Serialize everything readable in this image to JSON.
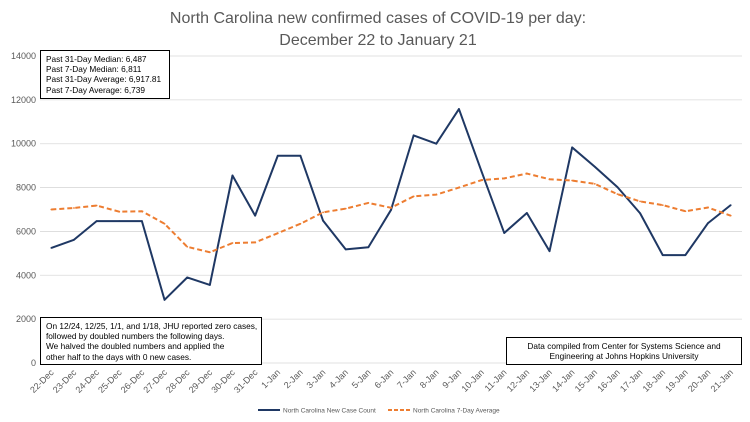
{
  "chart_data": {
    "type": "line",
    "title": [
      "North Carolina new confirmed cases of COVID-19 per day:",
      "December 22 to January 21"
    ],
    "categories": [
      "22-Dec",
      "23-Dec",
      "24-Dec",
      "25-Dec",
      "26-Dec",
      "27-Dec",
      "28-Dec",
      "29-Dec",
      "30-Dec",
      "31-Dec",
      "1-Jan",
      "2-Jan",
      "3-Jan",
      "4-Jan",
      "5-Jan",
      "6-Jan",
      "7-Jan",
      "8-Jan",
      "9-Jan",
      "10-Jan",
      "11-Jan",
      "12-Jan",
      "13-Jan",
      "14-Jan",
      "15-Jan",
      "16-Jan",
      "17-Jan",
      "18-Jan",
      "19-Jan",
      "20-Jan",
      "21-Jan"
    ],
    "ylim": [
      0,
      14000
    ],
    "yticks": [
      0,
      2000,
      4000,
      6000,
      8000,
      10000,
      12000,
      14000
    ],
    "series": [
      {
        "name": "North Carolina New Case Count",
        "color": "#1f3864",
        "style": "solid",
        "values": [
          5250,
          5620,
          6470,
          6470,
          6470,
          2880,
          3900,
          3560,
          8550,
          6720,
          9450,
          9450,
          6490,
          5180,
          5280,
          6980,
          10380,
          10000,
          11580,
          8730,
          5930,
          6840,
          5100,
          9830,
          8950,
          8020,
          6830,
          4920,
          4920,
          6380,
          7200
        ]
      },
      {
        "name": "North Carolina 7-Day Average",
        "color": "#ed7d31",
        "style": "dashed",
        "values": [
          7000,
          7070,
          7180,
          6900,
          6920,
          6350,
          5300,
          5050,
          5470,
          5500,
          5920,
          6350,
          6870,
          7040,
          7300,
          7080,
          7600,
          7680,
          8000,
          8340,
          8420,
          8640,
          8380,
          8320,
          8170,
          7700,
          7370,
          7200,
          6920,
          7090,
          6720
        ]
      }
    ],
    "grid": true,
    "legend": "bottom"
  },
  "boxes": {
    "stats": [
      "Past 31-Day Median: 6,487",
      "Past 7-Day Median: 6,811",
      "Past 31-Day Average: 6,917.81",
      "Past 7-Day Average: 6,739"
    ],
    "note": [
      "On 12/24, 12/25, 1/1, and 1/18, JHU reported zero cases,",
      "followed by doubled numbers the following days.",
      "We halved the doubled numbers and applied the",
      "other half to the days with 0 new cases."
    ],
    "source": [
      "Data compiled from Center for Systems Science and",
      "Engineering at Johns Hopkins University"
    ]
  }
}
